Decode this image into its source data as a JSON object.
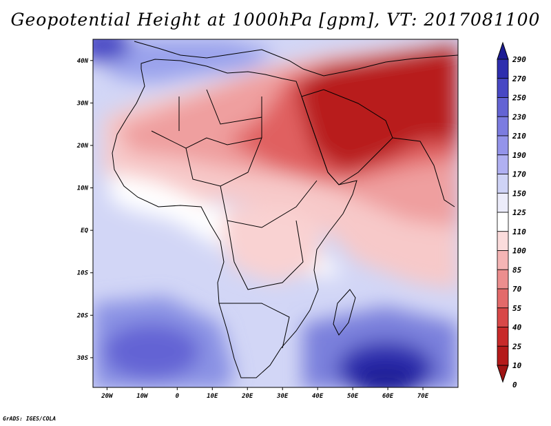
{
  "title": "Geopotential Height at 1000hPa [gpm], VT: 2017081100",
  "footer": "GrADS: IGES/COLA",
  "map": {
    "lon_range": [
      -24,
      80
    ],
    "lat_range": [
      -37,
      45
    ],
    "lon_ticks": [
      "20W",
      "10W",
      "0",
      "10E",
      "20E",
      "30E",
      "40E",
      "50E",
      "60E",
      "70E"
    ],
    "lat_ticks": [
      "40N",
      "30N",
      "20N",
      "10N",
      "EQ",
      "10S",
      "20S",
      "30S"
    ]
  },
  "colorbar": {
    "levels": [
      "290",
      "270",
      "250",
      "230",
      "210",
      "190",
      "170",
      "150",
      "125",
      "110",
      "100",
      "85",
      "70",
      "55",
      "40",
      "25",
      "10",
      "0"
    ],
    "colors": [
      "#1c1c94",
      "#2e2eae",
      "#4848c4",
      "#6464d4",
      "#7c7ce0",
      "#9494ea",
      "#b0b0f2",
      "#cfd3f6",
      "#ececfa",
      "#ffffff",
      "#fbdcdc",
      "#f5b5b5",
      "#ec8e8e",
      "#e36a6a",
      "#d84848",
      "#c82a2a",
      "#b41a1a",
      "#a01414"
    ]
  }
}
